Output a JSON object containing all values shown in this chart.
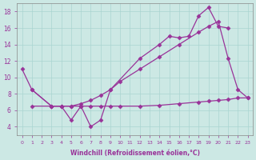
{
  "bg_color": "#cce8e4",
  "grid_color": "#aad4d0",
  "line_color": "#993399",
  "xlabel": "Windchill (Refroidissement éolien,°C)",
  "ylim": [
    3,
    19
  ],
  "xlim": [
    -0.5,
    23.5
  ],
  "yticks": [
    4,
    6,
    8,
    10,
    12,
    14,
    16,
    18
  ],
  "xticks": [
    0,
    1,
    2,
    3,
    4,
    5,
    6,
    7,
    8,
    9,
    10,
    11,
    12,
    13,
    14,
    15,
    16,
    17,
    18,
    19,
    20,
    21,
    22,
    23
  ],
  "series": [
    {
      "x": [
        0,
        1,
        3,
        4,
        5,
        6,
        7,
        8,
        9,
        12,
        14,
        15,
        16,
        17,
        18,
        19,
        20,
        21
      ],
      "y": [
        11.0,
        8.5,
        6.5,
        6.5,
        4.8,
        6.5,
        4.0,
        4.8,
        8.5,
        12.3,
        14.0,
        15.0,
        14.8,
        15.0,
        17.5,
        18.5,
        16.2,
        16.0
      ],
      "marker": true
    },
    {
      "x": [
        1,
        3,
        4,
        5,
        6,
        7,
        8,
        9,
        10,
        12,
        14,
        16,
        18,
        19,
        20,
        21,
        22,
        23
      ],
      "y": [
        8.5,
        6.5,
        6.5,
        6.5,
        6.8,
        7.2,
        7.8,
        8.5,
        9.5,
        11.0,
        12.5,
        14.0,
        15.5,
        16.2,
        16.8,
        12.3,
        8.5,
        7.5
      ],
      "marker": true
    },
    {
      "x": [
        1,
        3,
        4,
        5,
        6,
        7,
        8,
        9,
        10,
        12,
        14,
        16,
        18,
        19,
        20,
        21,
        22,
        23
      ],
      "y": [
        6.5,
        6.5,
        6.5,
        6.5,
        6.5,
        6.5,
        6.5,
        6.5,
        6.5,
        6.5,
        6.6,
        6.8,
        7.0,
        7.1,
        7.2,
        7.3,
        7.5,
        7.5
      ],
      "marker": true
    }
  ]
}
